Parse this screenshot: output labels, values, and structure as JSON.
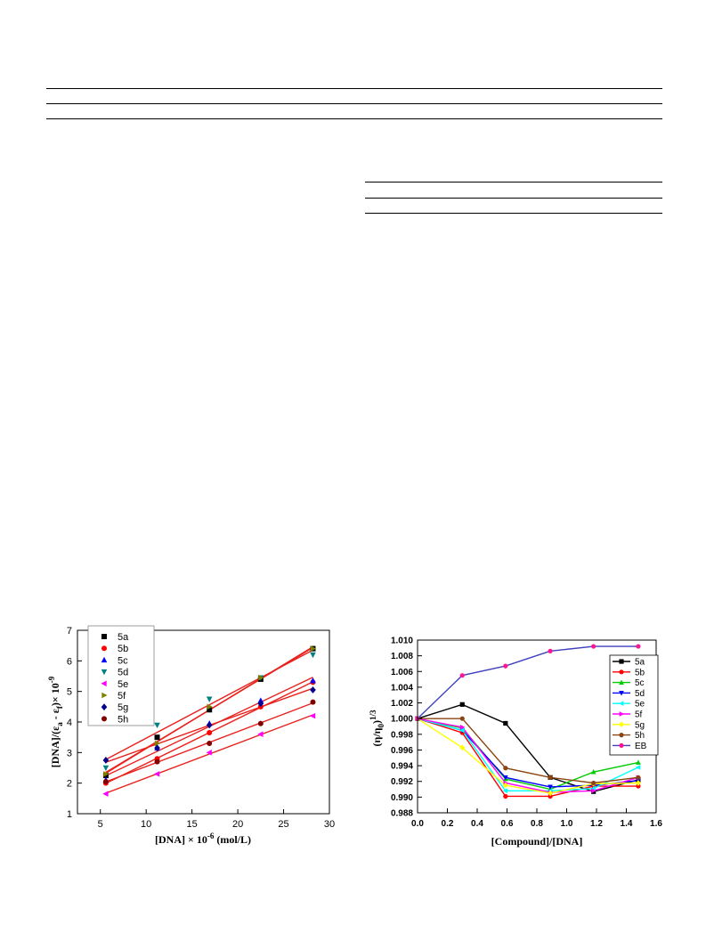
{
  "page": {
    "table_rules": [
      {
        "id": "table-1-rule"
      },
      {
        "id": "table-1-rule"
      },
      {
        "id": "table-1-rule"
      },
      {
        "id": "table-2-rule"
      },
      {
        "id": "table-2-rule"
      },
      {
        "id": "table-2-rule"
      }
    ]
  },
  "chart_data": [
    {
      "type": "scatter",
      "title": "",
      "xlabel": "[DNA] × 10",
      "xlabel_sup": "-6",
      "xlabel_unit": " (mol/L)",
      "ylabel": "[DNA]/(ε",
      "ylabel_sub1": "a",
      "ylabel_mid": " - ε",
      "ylabel_sub2": "f",
      "ylabel_end": ")× 10",
      "ylabel_sup": "-9",
      "xlim": [
        2.5,
        30
      ],
      "ylim": [
        1,
        7
      ],
      "xticks": [
        "5",
        "10",
        "15",
        "20",
        "25",
        "30"
      ],
      "yticks": [
        "1",
        "2",
        "3",
        "4",
        "5",
        "6",
        "7"
      ],
      "legend_position": "top-left",
      "fit_line_color": "#e8231f",
      "x": [
        5.6,
        11.2,
        16.9,
        22.5,
        28.2
      ],
      "series": [
        {
          "name": "5a",
          "color": "#000000",
          "marker": "square",
          "values": [
            2.25,
            3.5,
            4.4,
            5.4,
            6.4
          ]
        },
        {
          "name": "5b",
          "color": "#ff0000",
          "marker": "circle",
          "values": [
            2.0,
            2.8,
            3.65,
            4.5,
            5.3
          ]
        },
        {
          "name": "5c",
          "color": "#0000ff",
          "marker": "triangle-up",
          "values": [
            2.1,
            3.15,
            3.95,
            4.7,
            5.35
          ]
        },
        {
          "name": "5d",
          "color": "#008080",
          "marker": "triangle-down",
          "values": [
            2.5,
            3.9,
            4.75,
            5.45,
            6.2
          ]
        },
        {
          "name": "5e",
          "color": "#ff00ff",
          "marker": "triangle-left",
          "values": [
            1.65,
            2.3,
            3.0,
            3.6,
            4.2
          ]
        },
        {
          "name": "5f",
          "color": "#808000",
          "marker": "triangle-right",
          "values": [
            2.3,
            3.3,
            4.5,
            5.45,
            6.4
          ]
        },
        {
          "name": "5g",
          "color": "#00008b",
          "marker": "diamond",
          "values": [
            2.75,
            3.15,
            3.9,
            4.6,
            5.05
          ]
        },
        {
          "name": "5h",
          "color": "#800000",
          "marker": "circle",
          "values": [
            2.05,
            2.7,
            3.3,
            3.95,
            4.65
          ]
        }
      ]
    },
    {
      "type": "line",
      "title": "",
      "xlabel": "[Compound]/[DNA]",
      "ylabel": "(η/η",
      "ylabel_sub": "0",
      "ylabel_end": ")",
      "ylabel_sup": "1/3",
      "xlim": [
        0.0,
        1.6
      ],
      "ylim": [
        0.988,
        1.01
      ],
      "xticks": [
        "0.0",
        "0.2",
        "0.4",
        "0.6",
        "0.8",
        "1.0",
        "1.2",
        "1.4",
        "1.6"
      ],
      "yticks": [
        "0.988",
        "0.990",
        "0.992",
        "0.994",
        "0.996",
        "0.998",
        "1.000",
        "1.002",
        "1.004",
        "1.006",
        "1.008",
        "1.010"
      ],
      "legend_position": "right",
      "x": [
        0.0,
        0.3,
        0.59,
        0.89,
        1.18,
        1.48
      ],
      "series": [
        {
          "name": "5a",
          "color": "#000000",
          "marker": "square",
          "values": [
            1.0,
            1.0018,
            0.9994,
            0.9925,
            0.9907,
            0.9922
          ]
        },
        {
          "name": "5b",
          "color": "#ff0000",
          "marker": "circle",
          "values": [
            1.0,
            0.9982,
            0.9901,
            0.9901,
            0.9914,
            0.9914
          ]
        },
        {
          "name": "5c",
          "color": "#00cc00",
          "marker": "triangle-up",
          "values": [
            1.0,
            0.9988,
            0.9923,
            0.991,
            0.9932,
            0.9944
          ]
        },
        {
          "name": "5d",
          "color": "#0000ff",
          "marker": "triangle-down",
          "values": [
            1.0,
            0.9985,
            0.9925,
            0.9913,
            0.9915,
            0.9921
          ]
        },
        {
          "name": "5e",
          "color": "#00ffff",
          "marker": "triangle-left",
          "values": [
            1.0,
            0.9985,
            0.9908,
            0.9908,
            0.9911,
            0.9938
          ]
        },
        {
          "name": "5f",
          "color": "#ff00ff",
          "marker": "triangle-right",
          "values": [
            1.0,
            0.9989,
            0.9918,
            0.9906,
            0.9908,
            0.9925
          ]
        },
        {
          "name": "5g",
          "color": "#ffff00",
          "marker": "diamond",
          "values": [
            1.0,
            0.9963,
            0.9915,
            0.9905,
            0.9917,
            0.9918
          ]
        },
        {
          "name": "5h",
          "color": "#8b4513",
          "marker": "circle",
          "values": [
            1.0,
            1.0,
            0.9937,
            0.9925,
            0.9918,
            0.9925
          ]
        },
        {
          "name": "EB",
          "color": "#3f3fbf",
          "marker": "circle",
          "marker_color": "#ff1493",
          "values": [
            1.0,
            1.0055,
            1.0067,
            1.0086,
            1.0092,
            1.0092
          ]
        }
      ]
    }
  ]
}
